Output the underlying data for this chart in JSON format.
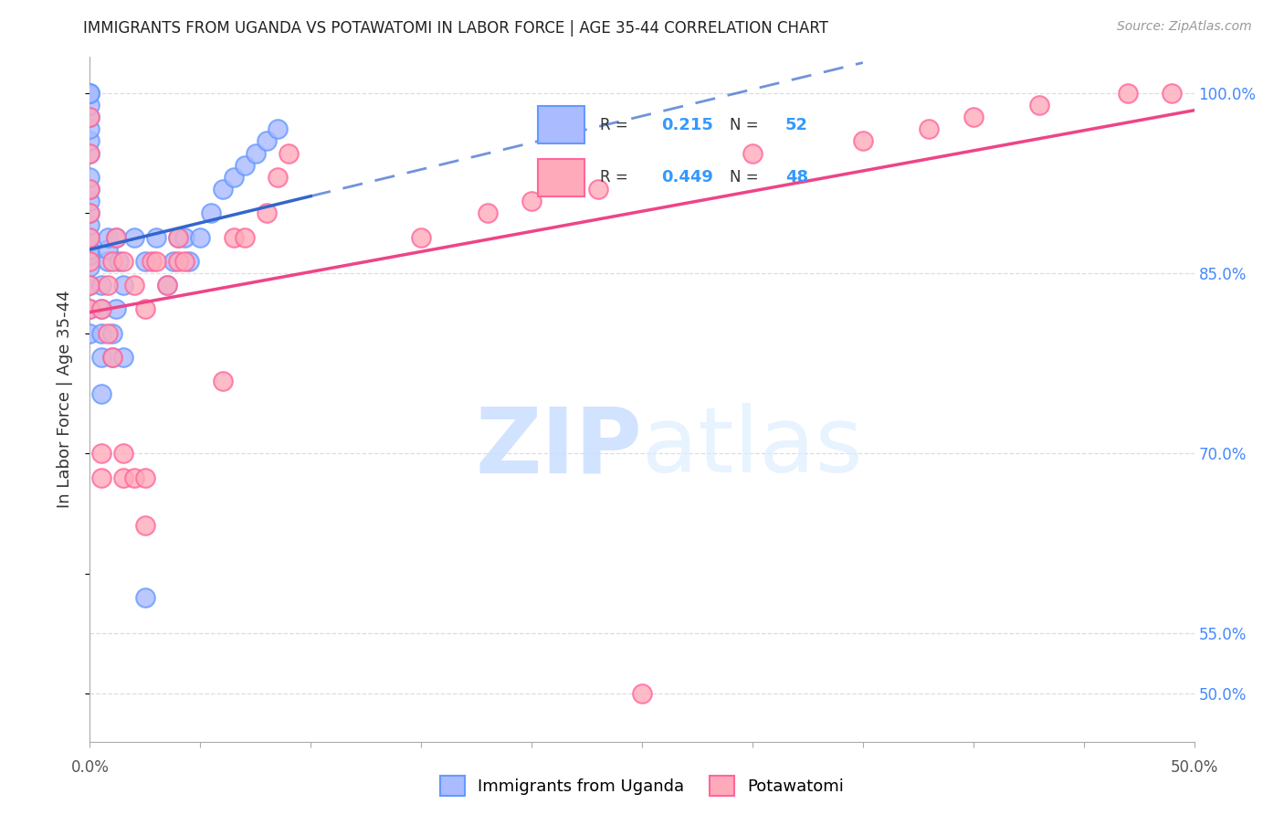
{
  "title": "IMMIGRANTS FROM UGANDA VS POTAWATOMI IN LABOR FORCE | AGE 35-44 CORRELATION CHART",
  "source": "Source: ZipAtlas.com",
  "ylabel": "In Labor Force | Age 35-44",
  "y_ticks": [
    50.0,
    55.0,
    70.0,
    85.0,
    100.0
  ],
  "y_tick_labels": [
    "50.0%",
    "55.0%",
    "70.0%",
    "85.0%",
    "100.0%"
  ],
  "xmin": 0.0,
  "xmax": 50.0,
  "ymin": 46.0,
  "ymax": 103.0,
  "uganda_R": 0.215,
  "uganda_N": 52,
  "potawatomi_R": 0.449,
  "potawatomi_N": 48,
  "uganda_color_face": "#aabbff",
  "uganda_color_edge": "#6699FF",
  "potawatomi_color_face": "#ffaabb",
  "potawatomi_color_edge": "#FF6699",
  "uganda_line_color": "#3366CC",
  "potawatomi_line_color": "#EE4488",
  "grid_color": "#dddddd",
  "watermark_zip_color": "#cce0ff",
  "watermark_atlas_color": "#ddeeff",
  "uganda_x": [
    0.0,
    0.0,
    0.0,
    0.0,
    0.0,
    0.0,
    0.0,
    0.0,
    0.0,
    0.0,
    0.0,
    0.0,
    0.0,
    0.0,
    0.0,
    0.0,
    0.0,
    0.0,
    0.0,
    0.0,
    0.5,
    0.5,
    0.5,
    0.5,
    0.5,
    0.8,
    0.8,
    0.8,
    1.0,
    1.0,
    1.2,
    1.2,
    1.3,
    1.5,
    1.5,
    2.0,
    2.5,
    2.5,
    3.0,
    3.5,
    3.8,
    4.0,
    4.3,
    4.5,
    5.0,
    5.5,
    6.0,
    6.5,
    7.0,
    7.5,
    8.0,
    8.5
  ],
  "uganda_y": [
    80.0,
    82.0,
    84.0,
    85.5,
    86.5,
    87.0,
    88.0,
    89.0,
    90.0,
    91.0,
    92.0,
    93.0,
    95.0,
    96.0,
    97.0,
    98.0,
    99.0,
    100.0,
    100.0,
    100.0,
    75.0,
    78.0,
    80.0,
    82.0,
    84.0,
    86.0,
    87.0,
    88.0,
    78.0,
    80.0,
    82.0,
    88.0,
    86.0,
    78.0,
    84.0,
    88.0,
    58.0,
    86.0,
    88.0,
    84.0,
    86.0,
    88.0,
    88.0,
    86.0,
    88.0,
    90.0,
    92.0,
    93.0,
    94.0,
    95.0,
    96.0,
    97.0
  ],
  "potawatomi_x": [
    0.0,
    0.0,
    0.0,
    0.0,
    0.0,
    0.0,
    0.0,
    0.0,
    0.5,
    0.5,
    0.5,
    0.8,
    0.8,
    1.0,
    1.0,
    1.2,
    1.5,
    1.5,
    1.5,
    2.0,
    2.0,
    2.5,
    2.5,
    2.5,
    2.8,
    3.0,
    3.5,
    4.0,
    4.0,
    4.3,
    6.0,
    6.5,
    7.0,
    8.0,
    8.5,
    9.0,
    15.0,
    18.0,
    20.0,
    23.0,
    25.0,
    30.0,
    35.0,
    38.0,
    40.0,
    43.0,
    47.0,
    49.0
  ],
  "potawatomi_y": [
    82.0,
    84.0,
    86.0,
    88.0,
    90.0,
    92.0,
    95.0,
    98.0,
    68.0,
    70.0,
    82.0,
    80.0,
    84.0,
    78.0,
    86.0,
    88.0,
    68.0,
    70.0,
    86.0,
    68.0,
    84.0,
    64.0,
    68.0,
    82.0,
    86.0,
    86.0,
    84.0,
    86.0,
    88.0,
    86.0,
    76.0,
    88.0,
    88.0,
    90.0,
    93.0,
    95.0,
    88.0,
    90.0,
    91.0,
    92.0,
    50.0,
    95.0,
    96.0,
    97.0,
    98.0,
    99.0,
    100.0,
    100.0
  ]
}
